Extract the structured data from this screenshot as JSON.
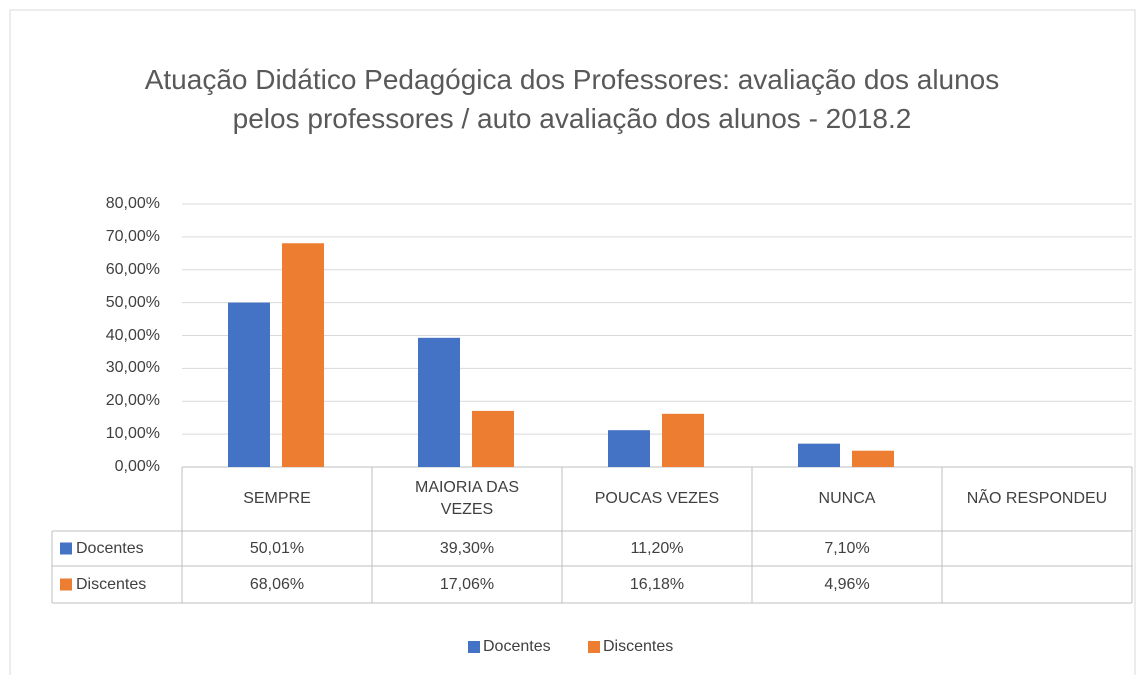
{
  "chart_data": {
    "type": "bar",
    "title": "Atuação Didático Pedagógica dos Professores: avaliação dos alunos pelos professores / auto avaliação dos alunos - 2018.2",
    "categories": [
      "SEMPRE",
      "MAIORIA DAS VEZES",
      "POUCAS VEZES",
      "NUNCA",
      "NÃO RESPONDEU"
    ],
    "series": [
      {
        "name": "Docentes",
        "color": "#4472c4",
        "values": [
          50.01,
          39.3,
          11.2,
          7.1,
          null
        ],
        "value_labels": [
          "50,01%",
          "39,30%",
          "11,20%",
          "7,10%",
          null
        ]
      },
      {
        "name": "Discentes",
        "color": "#ed7d31",
        "values": [
          68.06,
          17.06,
          16.18,
          4.96,
          null
        ],
        "value_labels": [
          "68,06%",
          "17,06%",
          "16,18%",
          "4,96%",
          null
        ]
      }
    ],
    "ylim": [
      0,
      80
    ],
    "yticks": [
      {
        "value": 0,
        "label": "0,00%"
      },
      {
        "value": 10,
        "label": "10,00%"
      },
      {
        "value": 20,
        "label": "20,00%"
      },
      {
        "value": 30,
        "label": "30,00%"
      },
      {
        "value": 40,
        "label": "40,00%"
      },
      {
        "value": 50,
        "label": "50,00%"
      },
      {
        "value": 60,
        "label": "60,00%"
      },
      {
        "value": 70,
        "label": "70,00%"
      },
      {
        "value": 80,
        "label": "80,00%"
      }
    ],
    "grid": true,
    "legend": "bottom"
  }
}
